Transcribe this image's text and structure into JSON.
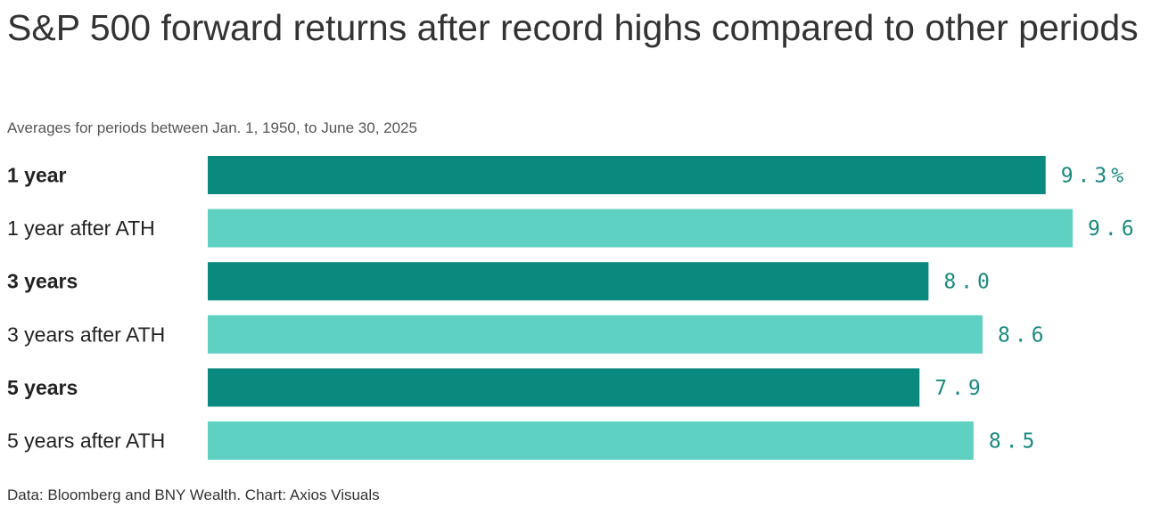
{
  "title": "S&P 500 forward returns after record highs compared to other periods",
  "subtitle": "Averages for periods between Jan. 1, 1950, to June 30, 2025",
  "source": "Data: Bloomberg and BNY Wealth. Chart: Axios Visuals",
  "colors": {
    "dark": "#0a8a7e",
    "light": "#5fd1c2",
    "label_text": "#1a8a80"
  },
  "chart_data": {
    "type": "bar",
    "orientation": "horizontal",
    "categories": [
      "1 year",
      "1 year after ATH",
      "3 years",
      "3 years after ATH",
      "5 years",
      "5 years after ATH"
    ],
    "values": [
      9.3,
      9.6,
      8.0,
      8.6,
      7.9,
      8.5
    ],
    "value_labels": [
      "9.3%",
      "9.6",
      "8.0",
      "8.6",
      "7.9",
      "8.5"
    ],
    "bold_categories": [
      "1 year",
      "3 years",
      "5 years"
    ],
    "xlim": [
      0,
      9.6
    ],
    "grid": false
  }
}
